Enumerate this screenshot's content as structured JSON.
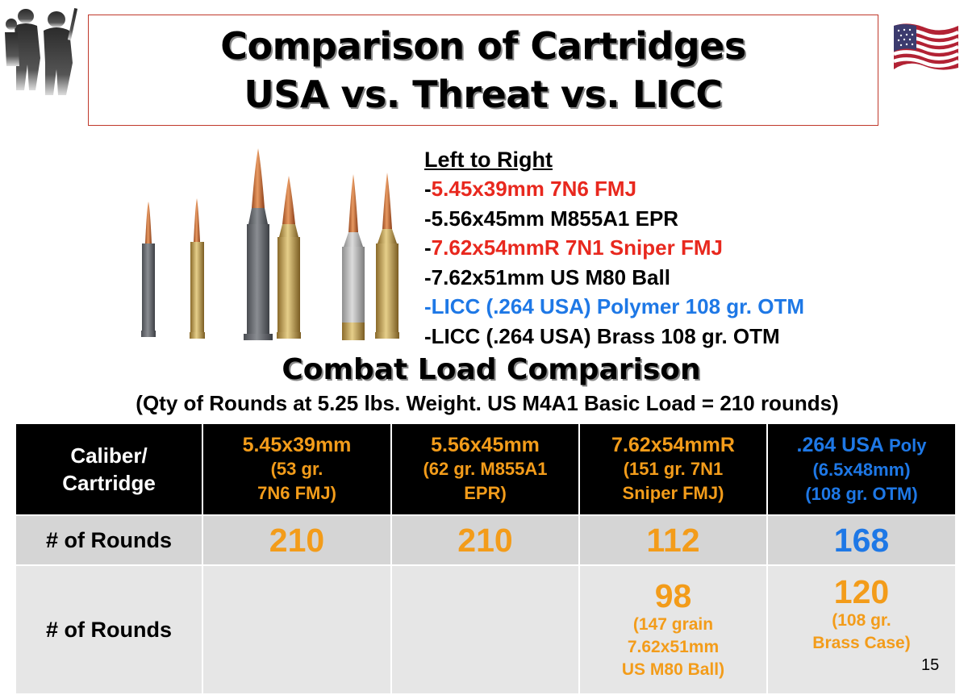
{
  "title": {
    "line1": "Comparison of Cartridges",
    "line2": "USA vs. Threat vs. LICC"
  },
  "left_to_right": {
    "heading": "Left to Right",
    "items": [
      {
        "prefix": "-",
        "text": "5.45x39mm 7N6 FMJ",
        "color": "#e8281e"
      },
      {
        "prefix": "-",
        "text": "5.56x45mm M855A1 EPR",
        "color": "#000000"
      },
      {
        "prefix": "-",
        "text": "7.62x54mmR 7N1 Sniper FMJ",
        "color": "#e8281e"
      },
      {
        "prefix": "-",
        "text": "7.62x51mm US M80 Ball",
        "color": "#000000"
      },
      {
        "prefix": "-",
        "text": "LICC (.264 USA) Polymer 108 gr. OTM",
        "color": "#1e78e6"
      },
      {
        "prefix": "-",
        "text": "LICC (.264 USA) Brass 108 gr. OTM",
        "color": "#000000"
      }
    ]
  },
  "combat_load": {
    "title": "Combat Load Comparison",
    "caption": "(Qty of Rounds at 5.25 lbs. Weight.  US M4A1 Basic Load = 210 rounds)"
  },
  "table": {
    "header": {
      "label_line1": "Caliber/",
      "label_line2": "Cartridge",
      "columns": [
        {
          "line1": "5.45x39mm",
          "line2": "(53 gr.",
          "line3": "7N6 FMJ)",
          "color": "#f39c1a"
        },
        {
          "line1": "5.56x45mm",
          "line2": "(62 gr. M855A1",
          "line3": "EPR)",
          "color": "#f39c1a"
        },
        {
          "line1": "7.62x54mmR",
          "line2": "(151 gr. 7N1",
          "line3": "Sniper FMJ)",
          "color": "#f39c1a"
        },
        {
          "line1": ".264 USA",
          "line1b": "Poly",
          "line2": "(6.5x48mm)",
          "line3": "(108 gr. OTM)",
          "color": "#1e78e6"
        }
      ]
    },
    "row1": {
      "label": "# of Rounds",
      "values": [
        "210",
        "210",
        "112",
        "168"
      ]
    },
    "row2": {
      "label": "# of Rounds",
      "col3": {
        "value": "98",
        "note1": "(147 grain",
        "note2": "7.62x51mm",
        "note3": "US M80 Ball)"
      },
      "col4": {
        "value": "120",
        "note1": "(108 gr.",
        "note2": "Brass Case)"
      }
    }
  },
  "page_number": "15",
  "icons": [
    "soldiers-silhouette-icon",
    "us-flag-icon",
    "cartridges-photo"
  ],
  "colors": {
    "threat_red": "#e8281e",
    "licc_blue": "#1e78e6",
    "value_orange": "#f39c1a"
  }
}
